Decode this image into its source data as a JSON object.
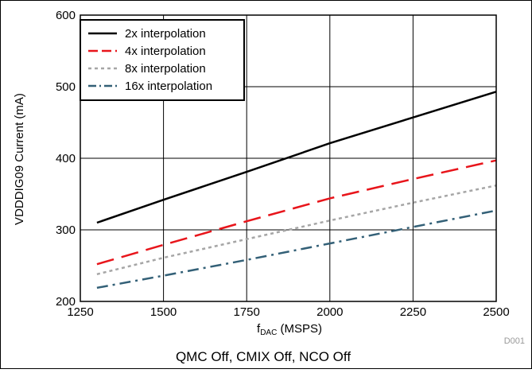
{
  "chart_data": {
    "type": "line",
    "title": "",
    "caption": "QMC Off, CMIX Off, NCO Off",
    "figure_id": "D001",
    "xlabel_main": "f",
    "xlabel_sub": "DAC",
    "xlabel_unit": " (MSPS)",
    "ylabel": "VDDDIG09 Current (mA)",
    "xlim": [
      1250,
      2500
    ],
    "ylim": [
      200,
      600
    ],
    "x_ticks": [
      1250,
      1500,
      1750,
      2000,
      2250,
      2500
    ],
    "y_ticks": [
      200,
      300,
      400,
      500,
      600
    ],
    "grid": true,
    "legend_position": "top-left",
    "series": [
      {
        "name": "2x interpolation",
        "color": "#000000",
        "dash": "solid",
        "x": [
          1300,
          1500,
          1750,
          2000,
          2250,
          2500
        ],
        "y": [
          310,
          342,
          381,
          421,
          457,
          493
        ]
      },
      {
        "name": "4x interpolation",
        "color": "#e8151b",
        "dash": "long-dash",
        "x": [
          1300,
          1500,
          1750,
          2000,
          2250,
          2500
        ],
        "y": [
          252,
          279,
          312,
          344,
          371,
          397
        ]
      },
      {
        "name": "8x interpolation",
        "color": "#a6a6a6",
        "dash": "dotted",
        "x": [
          1300,
          1500,
          1750,
          2000,
          2250,
          2500
        ],
        "y": [
          238,
          261,
          287,
          313,
          338,
          362
        ]
      },
      {
        "name": "16x interpolation",
        "color": "#336077",
        "dash": "dash-dot",
        "x": [
          1300,
          1500,
          1750,
          2000,
          2250,
          2500
        ],
        "y": [
          219,
          236,
          258,
          281,
          304,
          327
        ]
      }
    ]
  }
}
